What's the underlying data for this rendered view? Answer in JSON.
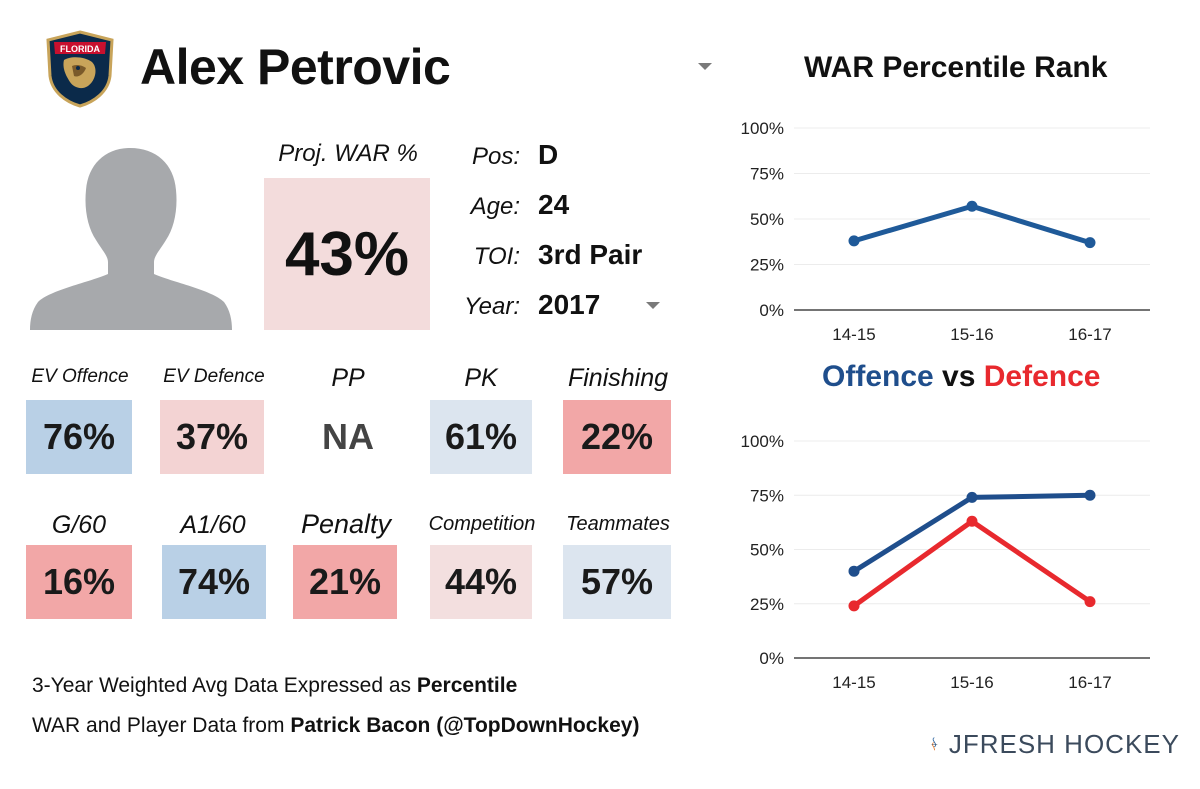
{
  "player": {
    "name": "Alex Petrovic",
    "team_logo_text": "FLORIDA"
  },
  "projection": {
    "label": "Proj. WAR %",
    "value": "43%"
  },
  "info": {
    "pos_label": "Pos:",
    "pos_value": "D",
    "age_label": "Age:",
    "age_value": "24",
    "toi_label": "TOI:",
    "toi_value": "3rd Pair",
    "year_label": "Year:",
    "year_value": "2017"
  },
  "stats_row1": [
    {
      "label": "EV Offence",
      "value": "76%",
      "color": "#b9d0e6"
    },
    {
      "label": "EV Defence",
      "value": "37%",
      "color": "#f3d3d3"
    },
    {
      "label": "PP",
      "value": "NA",
      "color": "#ffffff"
    },
    {
      "label": "PK",
      "value": "61%",
      "color": "#dce5ef"
    },
    {
      "label": "Finishing",
      "value": "22%",
      "color": "#f2a7a7"
    }
  ],
  "stats_row2": [
    {
      "label": "G/60",
      "value": "16%",
      "color": "#f2a7a7"
    },
    {
      "label": "A1/60",
      "value": "74%",
      "color": "#b9d0e6"
    },
    {
      "label": "Penalty",
      "value": "21%",
      "color": "#f2a7a7"
    },
    {
      "label": "Competition",
      "value": "44%",
      "color": "#f3dfdf"
    },
    {
      "label": "Teammates",
      "value": "57%",
      "color": "#dce5ef"
    }
  ],
  "footer": {
    "line1_prefix": "3-Year Weighted Avg Data Expressed as ",
    "line1_bold": "Percentile",
    "line2_prefix": "WAR and Player Data from ",
    "line2_bold": "Patrick Bacon (@TopDownHockey)"
  },
  "brand": {
    "name": "JFRESH HOCKEY"
  },
  "chart1_title": "WAR Percentile Rank",
  "chart2_title": {
    "offence": "Offence",
    "vs": " vs ",
    "defence": "Defence"
  },
  "colors": {
    "offence": "#1f4e8c",
    "defence": "#e8292e",
    "war_line": "#1f5a99"
  },
  "chart_data": [
    {
      "type": "line",
      "title": "WAR Percentile Rank",
      "categories": [
        "14-15",
        "15-16",
        "16-17"
      ],
      "series": [
        {
          "values": [
            38,
            57,
            37
          ]
        }
      ],
      "ylim": [
        0,
        100
      ],
      "yticks": [
        "0%",
        "25%",
        "50%",
        "75%",
        "100%"
      ],
      "grid": true
    },
    {
      "type": "line",
      "title": "Offence vs Defence",
      "categories": [
        "14-15",
        "15-16",
        "16-17"
      ],
      "series": [
        {
          "name": "Offence",
          "values": [
            40,
            74,
            75
          ]
        },
        {
          "name": "Defence",
          "values": [
            24,
            63,
            26
          ]
        }
      ],
      "ylim": [
        0,
        100
      ],
      "yticks": [
        "0%",
        "25%",
        "50%",
        "75%",
        "100%"
      ],
      "grid": true
    }
  ]
}
